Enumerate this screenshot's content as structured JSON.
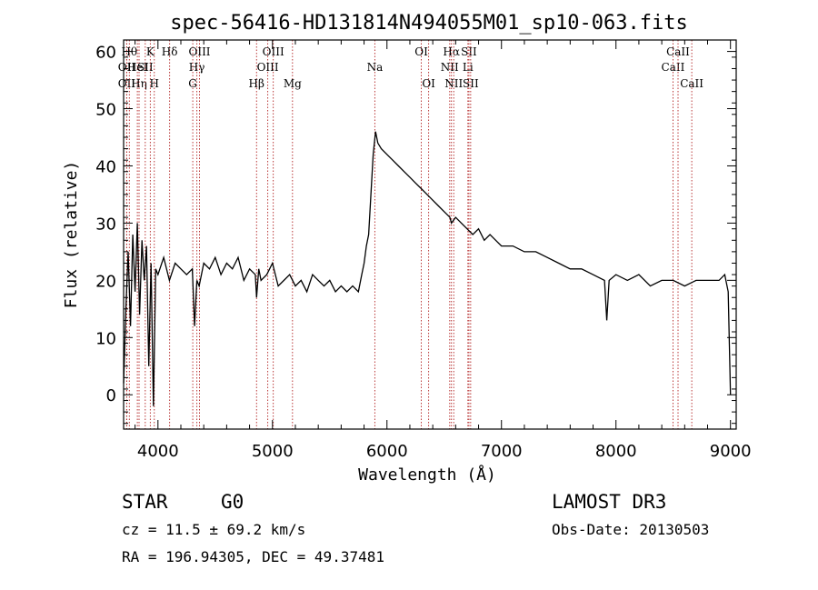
{
  "chart_data": {
    "type": "line",
    "title": "spec-56416-HD131814N494055M01_sp10-063.fits",
    "xlabel": "Wavelength (Å)",
    "ylabel": "Flux (relative)",
    "xlim": [
      3700,
      9050
    ],
    "ylim": [
      -6,
      62
    ],
    "xticks": [
      4000,
      5000,
      6000,
      7000,
      8000,
      9000
    ],
    "yticks": [
      0,
      10,
      20,
      30,
      40,
      50,
      60
    ],
    "series": [
      {
        "name": "flux",
        "x": [
          3700,
          3720,
          3740,
          3760,
          3780,
          3800,
          3820,
          3840,
          3860,
          3880,
          3900,
          3920,
          3940,
          3960,
          3980,
          4000,
          4050,
          4100,
          4150,
          4200,
          4250,
          4300,
          4320,
          4340,
          4360,
          4400,
          4450,
          4500,
          4550,
          4600,
          4650,
          4700,
          4750,
          4800,
          4850,
          4861,
          4880,
          4900,
          4950,
          5000,
          5050,
          5100,
          5150,
          5200,
          5250,
          5300,
          5350,
          5400,
          5450,
          5500,
          5550,
          5600,
          5650,
          5700,
          5750,
          5780,
          5800,
          5820,
          5840,
          5860,
          5880,
          5900,
          5920,
          5950,
          6000,
          6050,
          6100,
          6150,
          6200,
          6250,
          6300,
          6350,
          6400,
          6450,
          6500,
          6550,
          6563,
          6600,
          6650,
          6700,
          6750,
          6800,
          6850,
          6900,
          6950,
          7000,
          7100,
          7200,
          7300,
          7400,
          7500,
          7600,
          7700,
          7800,
          7900,
          7920,
          7940,
          8000,
          8100,
          8200,
          8300,
          8400,
          8500,
          8600,
          8700,
          8800,
          8900,
          8950,
          8980,
          9000
        ],
        "y": [
          2,
          15,
          25,
          12,
          28,
          18,
          30,
          14,
          27,
          20,
          26,
          5,
          23,
          -2,
          22,
          21,
          24,
          20,
          23,
          22,
          21,
          22,
          12,
          20,
          19,
          23,
          22,
          24,
          21,
          23,
          22,
          24,
          20,
          22,
          21,
          17,
          22,
          20,
          21,
          23,
          19,
          20,
          21,
          19,
          20,
          18,
          21,
          20,
          19,
          20,
          18,
          19,
          18,
          19,
          18,
          21,
          23,
          26,
          28,
          35,
          42,
          46,
          44,
          43,
          42,
          41,
          40,
          39,
          38,
          37,
          36,
          35,
          34,
          33,
          32,
          31,
          30,
          31,
          30,
          29,
          28,
          29,
          27,
          28,
          27,
          26,
          26,
          25,
          25,
          24,
          23,
          22,
          22,
          21,
          20,
          13,
          20,
          21,
          20,
          21,
          19,
          20,
          20,
          19,
          20,
          20,
          20,
          21,
          18,
          0
        ]
      }
    ],
    "line_markers": [
      {
        "x": 3727,
        "label": "OII",
        "row": 2
      },
      {
        "x": 3727,
        "label": "OII",
        "row": 3
      },
      {
        "x": 3750,
        "label": "Hθ",
        "row": 1
      },
      {
        "x": 3820,
        "label": "HeI",
        "row": 2
      },
      {
        "x": 3835,
        "label": "Hη",
        "row": 3
      },
      {
        "x": 3889,
        "label": "SII",
        "row": 2
      },
      {
        "x": 3933,
        "label": "K",
        "row": 1
      },
      {
        "x": 3968,
        "label": "H",
        "row": 3
      },
      {
        "x": 4102,
        "label": "Hδ",
        "row": 1
      },
      {
        "x": 4340,
        "label": "Hγ",
        "row": 2
      },
      {
        "x": 4304,
        "label": "G",
        "row": 3
      },
      {
        "x": 4363,
        "label": "OIII",
        "row": 1
      },
      {
        "x": 4861,
        "label": "Hβ",
        "row": 3
      },
      {
        "x": 4959,
        "label": "OIII",
        "row": 2
      },
      {
        "x": 5007,
        "label": "OIII",
        "row": 1
      },
      {
        "x": 5175,
        "label": "Mg",
        "row": 3
      },
      {
        "x": 5894,
        "label": "Na",
        "row": 2
      },
      {
        "x": 6300,
        "label": "OI",
        "row": 1
      },
      {
        "x": 6364,
        "label": "OI",
        "row": 3
      },
      {
        "x": 6548,
        "label": "NII",
        "row": 2
      },
      {
        "x": 6563,
        "label": "Hα",
        "row": 1
      },
      {
        "x": 6583,
        "label": "NII",
        "row": 3
      },
      {
        "x": 6707,
        "label": "Li",
        "row": 2
      },
      {
        "x": 6716,
        "label": "SII",
        "row": 1
      },
      {
        "x": 6731,
        "label": "SII",
        "row": 3
      },
      {
        "x": 8498,
        "label": "CaII",
        "row": 2
      },
      {
        "x": 8542,
        "label": "CaII",
        "row": 1
      },
      {
        "x": 8662,
        "label": "CaII",
        "row": 3
      }
    ]
  },
  "info": {
    "object_class": "STAR",
    "subclass": "G0",
    "survey": "LAMOST DR3",
    "redshift": "cz = 11.5 ± 69.2 km/s",
    "obs_date": "Obs-Date: 20130503",
    "coordinates": "RA = 196.94305, DEC =  49.37481"
  },
  "colors": {
    "marker": "#b22222",
    "axis": "#000000",
    "line": "#000000"
  }
}
